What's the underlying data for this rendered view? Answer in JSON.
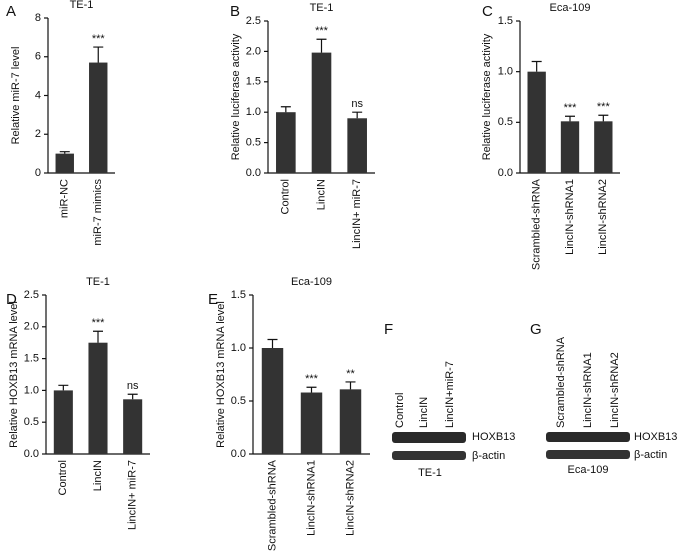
{
  "chart_data": [
    {
      "type": "bar",
      "panel": "A",
      "title": "TE-1",
      "ylabel": "Relative miR-7 level",
      "categories": [
        "miR-NC",
        "miR-7 mimics"
      ],
      "values": [
        1.0,
        5.7
      ],
      "errors": [
        0.1,
        0.8
      ],
      "annotations": [
        null,
        "***"
      ],
      "color": "#333333",
      "ylim": [
        0,
        8
      ],
      "yticks": [
        0,
        2,
        4,
        6,
        8
      ]
    },
    {
      "type": "bar",
      "panel": "B",
      "title": "TE-1",
      "ylabel": "Relative luciferase activity",
      "categories": [
        "Control",
        "LincIN",
        "LincIN+ miR-7"
      ],
      "values": [
        1.0,
        1.98,
        0.9
      ],
      "errors": [
        0.09,
        0.22,
        0.1
      ],
      "annotations": [
        null,
        "***",
        "ns"
      ],
      "color": "#333333",
      "ylim": [
        0,
        2.5
      ],
      "yticks": [
        {
          "value": 0,
          "label": "0.0"
        },
        0.5,
        {
          "value": 1,
          "label": "1.0"
        },
        1.5,
        {
          "value": 2,
          "label": "2.0"
        },
        2.5
      ]
    },
    {
      "type": "bar",
      "panel": "C",
      "title": "Eca-109",
      "ylabel": "Relative luciferase activity",
      "categories": [
        "Scrambled-shRNA",
        "LincIN-shRNA1",
        "LincIN-shRNA2"
      ],
      "values": [
        1.0,
        0.51,
        0.51
      ],
      "errors": [
        0.1,
        0.05,
        0.06
      ],
      "annotations": [
        null,
        "***",
        "***"
      ],
      "color": "#333333",
      "ylim": [
        0,
        1.5
      ],
      "yticks": [
        {
          "value": 0,
          "label": "0.0"
        },
        0.5,
        {
          "value": 1,
          "label": "1.0"
        },
        1.5
      ]
    },
    {
      "type": "bar",
      "panel": "D",
      "title": "TE-1",
      "ylabel": "Relative HOXB13 mRNA level",
      "categories": [
        "Control",
        "LincIN",
        "LincIN+ miR-7"
      ],
      "values": [
        1.0,
        1.75,
        0.86
      ],
      "errors": [
        0.08,
        0.18,
        0.08
      ],
      "annotations": [
        null,
        "***",
        "ns"
      ],
      "color": "#333333",
      "ylim": [
        0,
        2.5
      ],
      "yticks": [
        {
          "value": 0,
          "label": "0.0"
        },
        0.5,
        {
          "value": 1,
          "label": "1.0"
        },
        1.5,
        {
          "value": 2,
          "label": "2.0"
        },
        2.5
      ]
    },
    {
      "type": "bar",
      "panel": "E",
      "title": "Eca-109",
      "ylabel": "Relative HOXB13 mRNA level",
      "categories": [
        "Scrambled-shRNA",
        "LincIN-shRNA1",
        "LincIN-shRNA2"
      ],
      "values": [
        1.0,
        0.58,
        0.61
      ],
      "errors": [
        0.08,
        0.05,
        0.07
      ],
      "annotations": [
        null,
        "***",
        "**"
      ],
      "color": "#333333",
      "ylim": [
        0,
        1.5
      ],
      "yticks": [
        {
          "value": 0,
          "label": "0.0"
        },
        0.5,
        {
          "value": 1,
          "label": "1.0"
        },
        1.5
      ]
    }
  ],
  "blots": [
    {
      "panel": "F",
      "lanes": [
        "Control",
        "LincIN",
        "LincIN+miR-7"
      ],
      "bands": [
        "HOXB13",
        "β-actin"
      ],
      "cell_line": "TE-1"
    },
    {
      "panel": "G",
      "lanes": [
        "Scrambled-shRNA",
        "LincIN-shRNA1",
        "LincIN-shRNA2"
      ],
      "bands": [
        "HOXB13",
        "β-actin"
      ],
      "cell_line": "Eca-109"
    }
  ]
}
